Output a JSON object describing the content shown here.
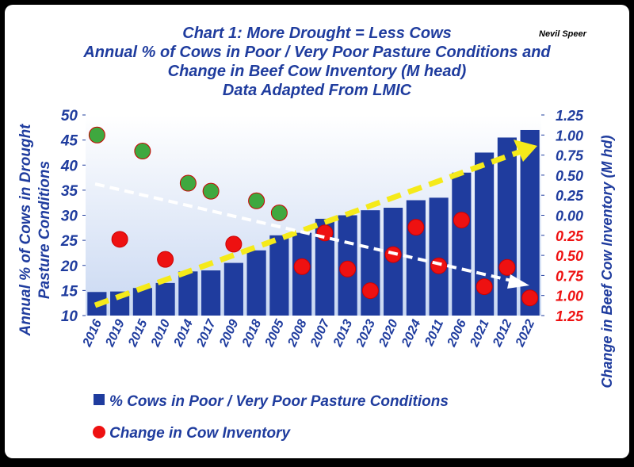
{
  "chart_data": {
    "type": "bar",
    "title": "Chart 1:  More Drought = Less Cows",
    "subtitle": [
      "Annual % of Cows in Poor / Very Poor Pasture Conditions and",
      "Change in Beef Cow Inventory (M head)",
      "Data Adapted From LMIC"
    ],
    "author": "Nevil Speer",
    "ylabel": [
      "Annual % of Cows in Drought",
      "Pasture Conditions"
    ],
    "y2label": "Change in Beef Cow Inventory (M hd)",
    "categories": [
      "2016",
      "2019",
      "2015",
      "2010",
      "2014",
      "2017",
      "2009",
      "2018",
      "2005",
      "2008",
      "2007",
      "2013",
      "2023",
      "2020",
      "2024",
      "2011",
      "2006",
      "2021",
      "2012",
      "2022"
    ],
    "series": [
      {
        "name": "% Cows in Poor / Very Poor Pasture Conditions",
        "color": "#1f3c9e",
        "type": "bar",
        "values": [
          14.7,
          14.8,
          15.5,
          16.5,
          18.8,
          19,
          20.5,
          23,
          26,
          26.5,
          29.3,
          30,
          31,
          31.5,
          33,
          33.5,
          38.5,
          42.5,
          45.5,
          47
        ]
      },
      {
        "name": "Change in Cow Inventory",
        "color": "#ee1111",
        "type": "scatter",
        "axis": "y2",
        "point_colors": [
          "#3fa83f",
          "#ee1111",
          "#3fa83f",
          "#ee1111",
          "#3fa83f",
          "#3fa83f",
          "#ee1111",
          "#3fa83f",
          "#3fa83f",
          "#ee1111",
          "#ee1111",
          "#ee1111",
          "#ee1111",
          "#ee1111",
          "#ee1111",
          "#ee1111",
          "#ee1111",
          "#ee1111",
          "#ee1111",
          "#ee1111"
        ],
        "values": [
          1.0,
          -0.3,
          0.8,
          -0.55,
          0.4,
          0.3,
          -0.36,
          0.18,
          0.03,
          -0.64,
          -0.22,
          -0.67,
          -0.94,
          -0.49,
          -0.15,
          -0.63,
          -0.06,
          -0.89,
          -0.65,
          -1.03
        ]
      }
    ],
    "ylim": [
      10,
      50
    ],
    "yticks": [
      10,
      15,
      20,
      25,
      30,
      35,
      40,
      45,
      50
    ],
    "y2lim": [
      -1.25,
      1.25
    ],
    "y2ticks": [
      1.25,
      {
        "value": 1,
        "label": "1.00"
      },
      0.75,
      {
        "value": 0.5,
        "label": "0.50"
      },
      0.25,
      {
        "value": 0,
        "label": "0.00"
      },
      {
        "value": -0.25,
        "label": "0.25"
      },
      {
        "value": -0.5,
        "label": "0.50"
      },
      {
        "value": -0.75,
        "label": "0.75"
      },
      {
        "value": -1,
        "label": "1.00"
      },
      {
        "value": -1.25,
        "label": "1.25"
      }
    ],
    "negative_tick_color": "#ee1111"
  }
}
